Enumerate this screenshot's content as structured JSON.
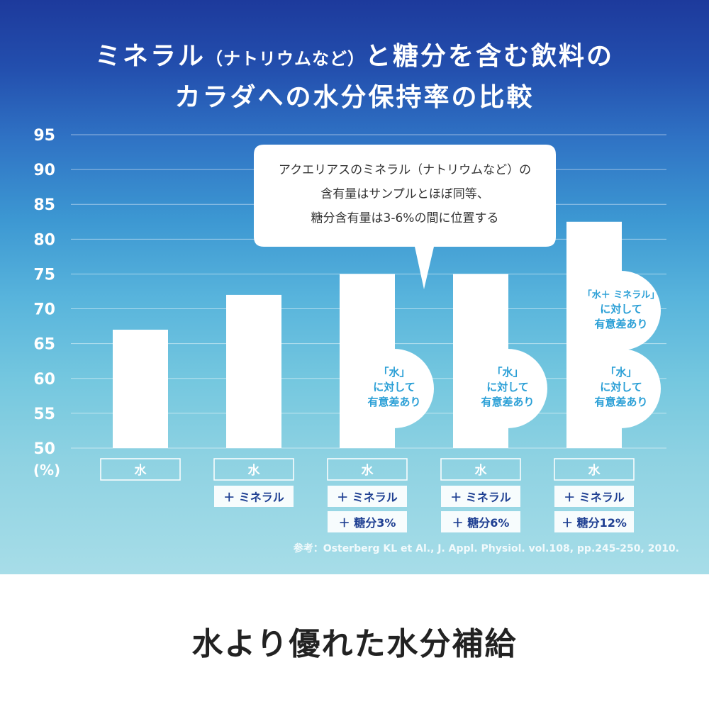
{
  "title": {
    "line1_part1": "ミネラル",
    "line1_paren": "（ナトリウムなど）",
    "line1_part2": "と糖分を含む飲料の",
    "line2": "カラダへの水分保持率の比較"
  },
  "callout": {
    "line1": "アクエリアスのミネラル（ナトリウムなど）の",
    "line2": "含有量はサンプルとほぼ同等、",
    "line3": "糖分含有量は3-6%の間に位置する"
  },
  "reference": "参考：Osterberg KL et Al., J. Appl. Physiol. vol.108, pp.245-250, 2010.",
  "footer": "水より優れた水分補給",
  "chart_data": {
    "type": "bar",
    "ylabel": "(%)",
    "ylim": [
      50,
      95
    ],
    "yticks": [
      50,
      55,
      60,
      65,
      70,
      75,
      80,
      85,
      90,
      95
    ],
    "grid": true,
    "categories": [
      [
        "水"
      ],
      [
        "水",
        "＋ ミネラル"
      ],
      [
        "水",
        "＋ ミネラル",
        "＋ 糖分3%"
      ],
      [
        "水",
        "＋ ミネラル",
        "＋ 糖分6%"
      ],
      [
        "水",
        "＋ ミネラル",
        "＋ 糖分12%"
      ]
    ],
    "values": [
      67,
      72,
      75,
      75,
      82.5
    ],
    "annotations": [
      {
        "bar": 2,
        "text": [
          "「水」",
          "に対して",
          "有意差あり"
        ]
      },
      {
        "bar": 3,
        "text": [
          "「水」",
          "に対して",
          "有意差あり"
        ]
      },
      {
        "bar": 4,
        "text": [
          "「水」",
          "に対して",
          "有意差あり"
        ]
      },
      {
        "bar": 4,
        "text": [
          "「水＋ ミネラル」",
          "に対して",
          "有意差あり"
        ]
      }
    ]
  },
  "colors": {
    "bar": "#ffffff",
    "grid": "#ffffff",
    "label_box_text": "#1e3f92",
    "annotation_text": "#2a9fd6",
    "callout_text": "#333333"
  }
}
